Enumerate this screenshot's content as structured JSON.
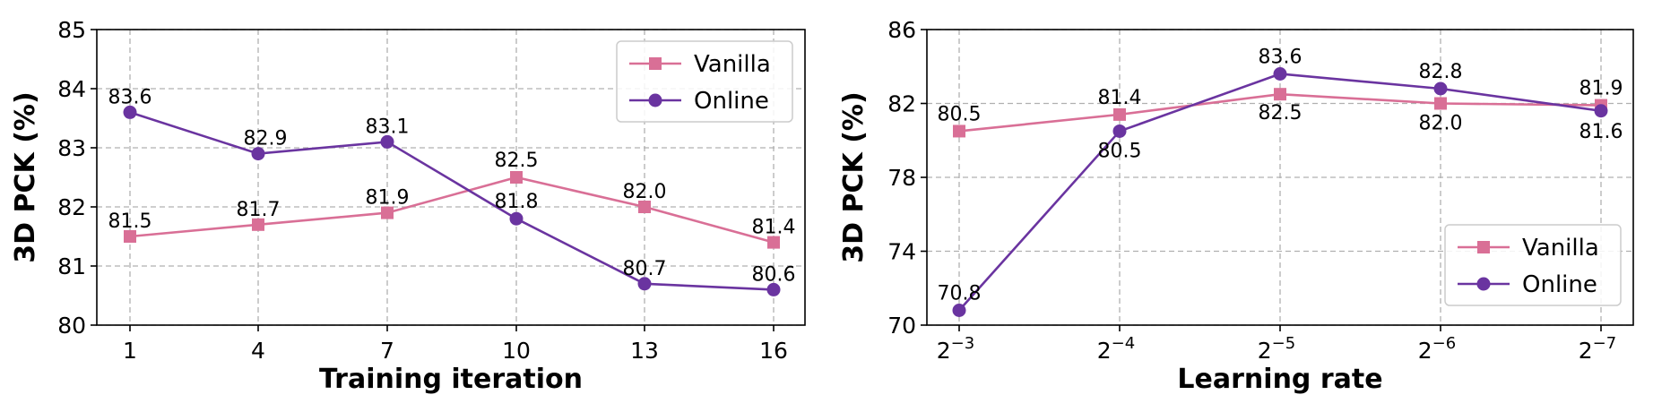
{
  "chart_data": [
    {
      "type": "line",
      "xlabel": "Training iteration",
      "ylabel": "3D PCK (%)",
      "categories": [
        "1",
        "4",
        "7",
        "10",
        "13",
        "16"
      ],
      "ylim": [
        80,
        85
      ],
      "yticks": [
        "80",
        "81",
        "82",
        "83",
        "84",
        "85"
      ],
      "grid": true,
      "legend_position": "top-right",
      "series": [
        {
          "name": "Vanilla",
          "color": "#d96f96",
          "marker": "square",
          "values": [
            81.5,
            81.7,
            81.9,
            82.5,
            82.0,
            81.4
          ],
          "labels": [
            "81.5",
            "81.7",
            "81.9",
            "82.5",
            "82.0",
            "81.4"
          ]
        },
        {
          "name": "Online",
          "color": "#6a34a0",
          "marker": "circle",
          "values": [
            83.6,
            82.9,
            83.1,
            81.8,
            80.7,
            80.6
          ],
          "labels": [
            "83.6",
            "82.9",
            "83.1",
            "81.8",
            "80.7",
            "80.6"
          ]
        }
      ]
    },
    {
      "type": "line",
      "xlabel": "Learning rate",
      "ylabel": "3D PCK (%)",
      "categories": [
        {
          "base": "2",
          "exp": "−3"
        },
        {
          "base": "2",
          "exp": "−4"
        },
        {
          "base": "2",
          "exp": "−5"
        },
        {
          "base": "2",
          "exp": "−6"
        },
        {
          "base": "2",
          "exp": "−7"
        }
      ],
      "ylim": [
        70,
        86
      ],
      "yticks": [
        "70",
        "74",
        "78",
        "82",
        "86"
      ],
      "grid": true,
      "legend_position": "bottom-right",
      "series": [
        {
          "name": "Vanilla",
          "color": "#d96f96",
          "marker": "square",
          "values": [
            80.5,
            81.4,
            82.5,
            82.0,
            81.9
          ],
          "labels": [
            "80.5",
            "81.4",
            "82.5",
            "82.0",
            "81.9"
          ]
        },
        {
          "name": "Online",
          "color": "#6a34a0",
          "marker": "circle",
          "values": [
            70.8,
            80.5,
            83.6,
            82.8,
            81.6
          ],
          "labels": [
            "70.8",
            "80.5",
            "83.6",
            "82.8",
            "81.6"
          ]
        }
      ]
    }
  ]
}
